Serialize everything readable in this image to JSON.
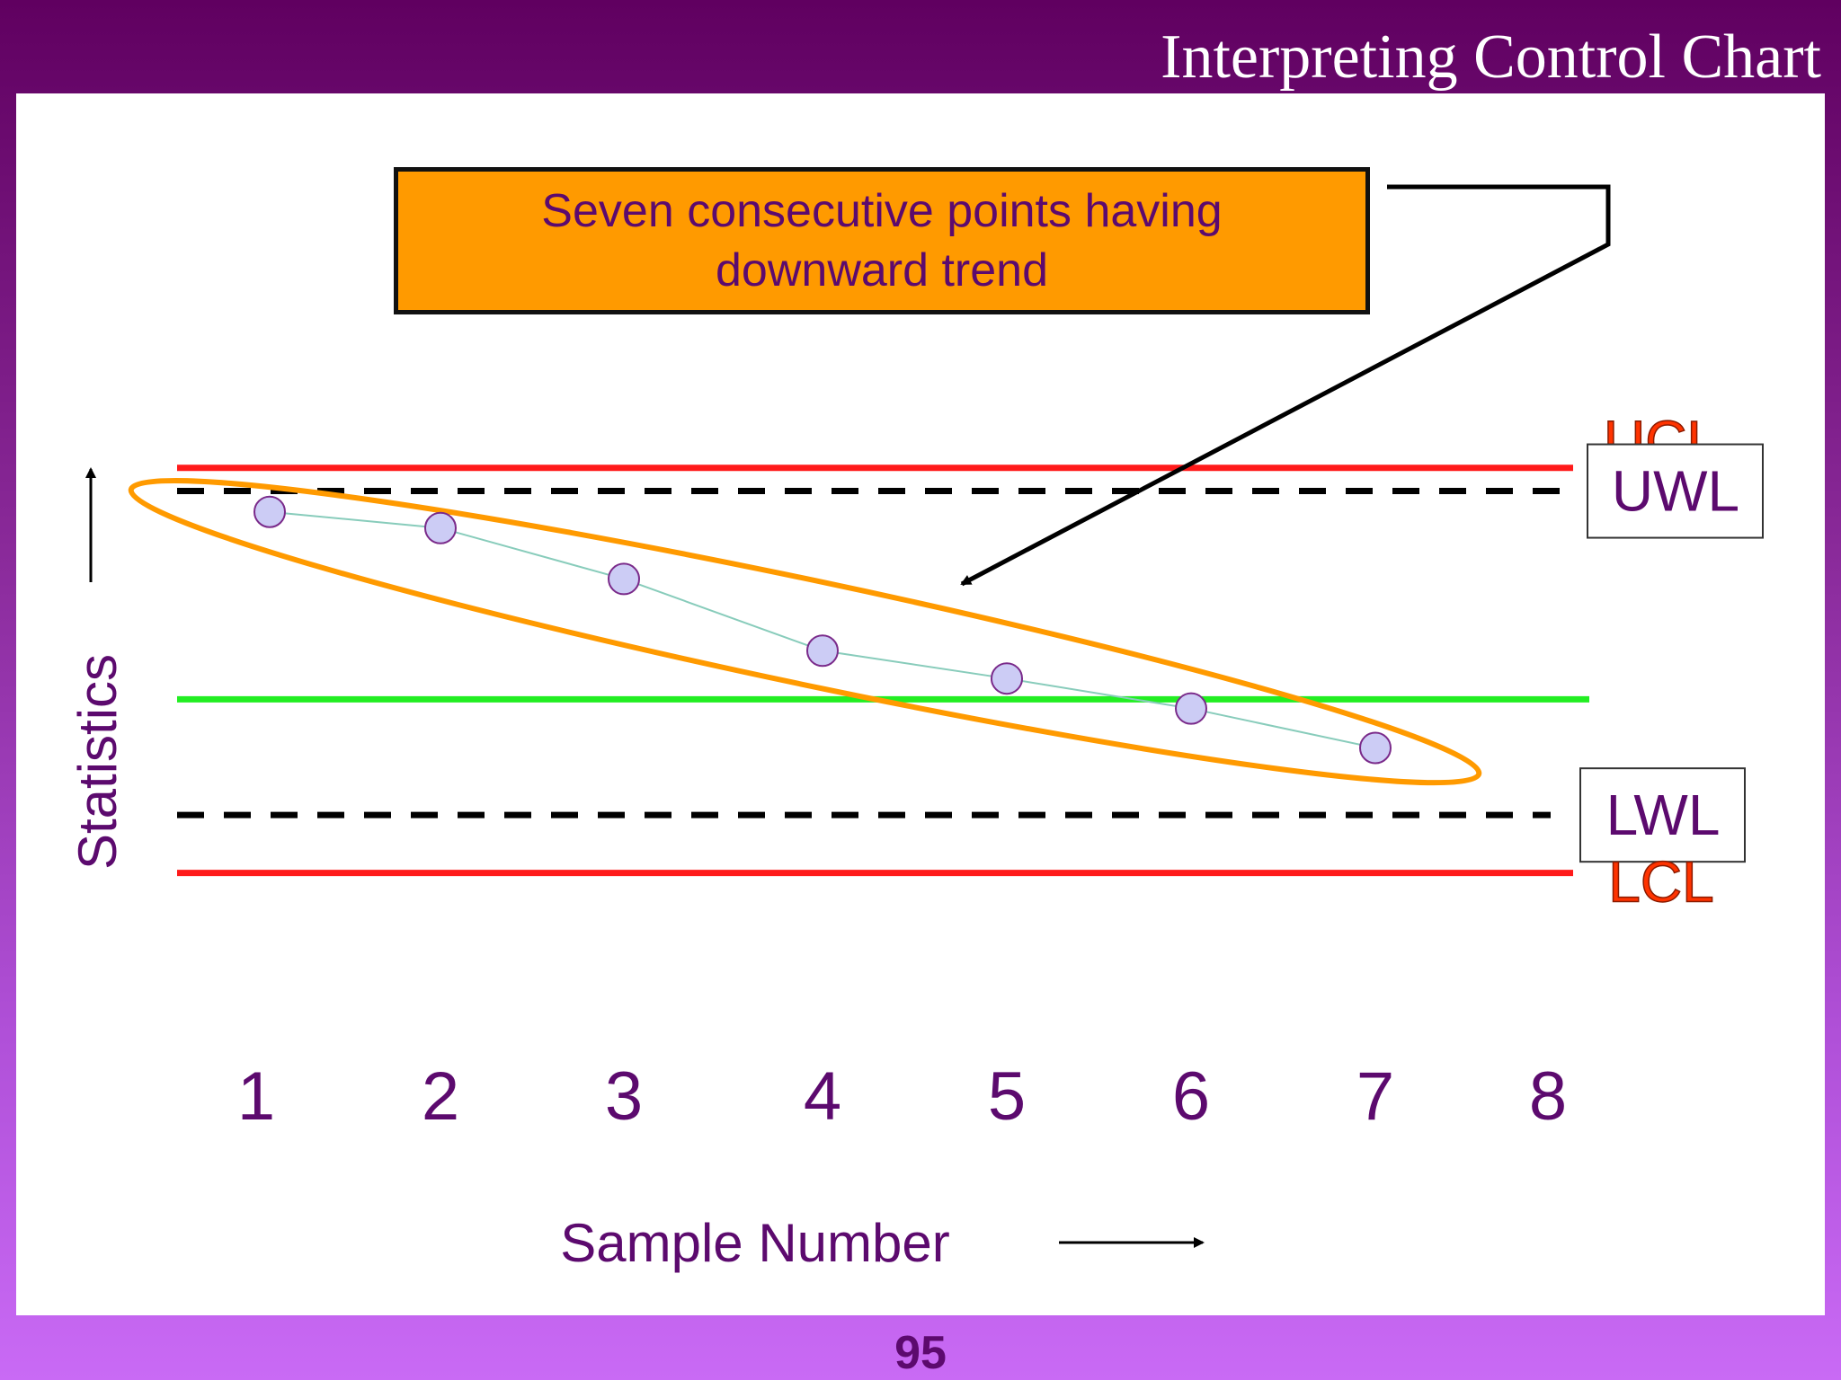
{
  "slide": {
    "title": "Interpreting Control Chart",
    "page_number": "95",
    "callout_text": "Seven consecutive points having downward trend"
  },
  "chart_data": {
    "type": "line",
    "title": "",
    "xlabel": "Sample Number",
    "ylabel": "Statistics",
    "x_ticks": [
      "1",
      "2",
      "3",
      "4",
      "5",
      "6",
      "7",
      "8"
    ],
    "x": [
      1,
      2,
      3,
      4,
      5,
      6,
      7
    ],
    "series": [
      {
        "values": [
          0.81,
          0.74,
          0.52,
          0.21,
          0.09,
          -0.04,
          -0.21
        ]
      }
    ],
    "ylim": [
      -1.4,
      1.5
    ],
    "xlim": [
      0.5,
      8.5
    ],
    "control_lines": [
      {
        "label": "UCL",
        "value": 1.0,
        "style": "solid",
        "color": "#ff1a1a",
        "label_color": "#ff3300",
        "boxed": false
      },
      {
        "label": "UWL",
        "value": 0.9,
        "style": "dashed",
        "color": "#000000",
        "label_color": "#5c0a6e",
        "boxed": true
      },
      {
        "label": "",
        "value": 0.0,
        "style": "solid",
        "color": "#22ee22"
      },
      {
        "label": "LWL",
        "value": -0.5,
        "style": "dashed",
        "color": "#000000",
        "label_color": "#5c0a6e",
        "boxed": true
      },
      {
        "label": "LCL",
        "value": -0.75,
        "style": "solid",
        "color": "#ff1a1a",
        "label_color": "#ff3300",
        "boxed": false
      }
    ],
    "annotation": "Seven consecutive points having downward trend",
    "colors": {
      "point_fill": "#ccccf5",
      "point_stroke": "#7a2a8a",
      "connector": "#88ccbb",
      "highlight_ellipse": "#ff9a00",
      "text": "#5c0a6e"
    },
    "grid": false,
    "legend": "none"
  }
}
